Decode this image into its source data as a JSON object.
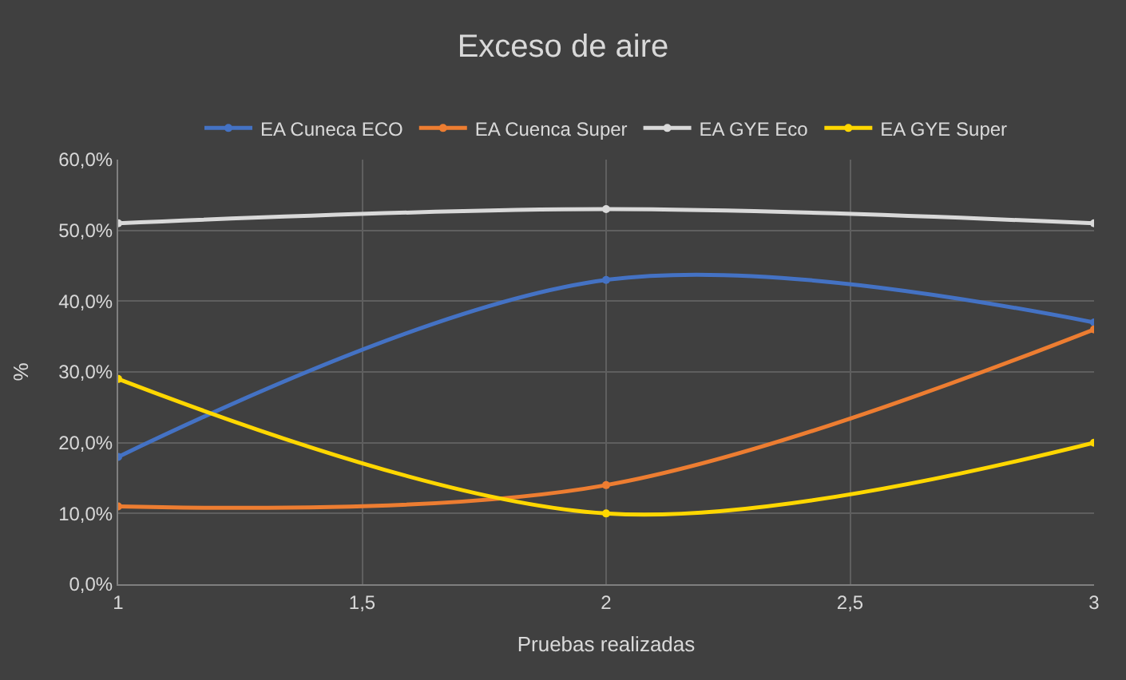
{
  "chart_data": {
    "type": "line",
    "title": "Exceso de aire",
    "xlabel": "Pruebas realizadas",
    "ylabel": "%",
    "x": [
      1,
      2,
      3
    ],
    "series": [
      {
        "name": "EA Cuneca ECO",
        "color": "#4472c4",
        "values": [
          18,
          43,
          37
        ]
      },
      {
        "name": "EA Cuenca Super",
        "color": "#ed7d31",
        "values": [
          11,
          14,
          36
        ]
      },
      {
        "name": "EA GYE Eco",
        "color": "#d9d9d9",
        "values": [
          51,
          53,
          51
        ]
      },
      {
        "name": "EA GYE Super",
        "color": "#ffd700",
        "values": [
          29,
          10,
          20
        ]
      }
    ],
    "xlim": [
      1,
      3
    ],
    "xticks": [
      {
        "value": 1,
        "label": "1"
      },
      {
        "value": 1.5,
        "label": "1,5"
      },
      {
        "value": 2,
        "label": "2"
      },
      {
        "value": 2.5,
        "label": "2,5"
      },
      {
        "value": 3,
        "label": "3"
      }
    ],
    "ylim": [
      0,
      60
    ],
    "yticks": [
      {
        "value": 0,
        "label": "0,0%"
      },
      {
        "value": 10,
        "label": "10,0%"
      },
      {
        "value": 20,
        "label": "20,0%"
      },
      {
        "value": 30,
        "label": "30,0%"
      },
      {
        "value": 40,
        "label": "40,0%"
      },
      {
        "value": 50,
        "label": "50,0%"
      },
      {
        "value": 60,
        "label": "60,0%"
      }
    ],
    "grid": true,
    "legend": "top",
    "marker": "circle",
    "line_style": "solid"
  }
}
